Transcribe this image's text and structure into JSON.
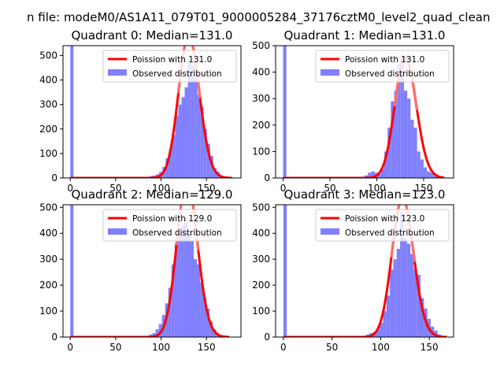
{
  "figure": {
    "suptitle": "n file: modeM0/AS1A11_079T01_9000005284_37176cztM0_level2_quad_clean"
  },
  "chart_data": [
    {
      "type": "bar",
      "title": "Quadrant 0: Median=131.0",
      "median": 131.0,
      "xlim": [
        -8,
        188
      ],
      "ylim": [
        0,
        540
      ],
      "xticks": [
        0,
        50,
        100,
        150
      ],
      "yticks": [
        0,
        100,
        200,
        300,
        400,
        500
      ],
      "legend": [
        "Poission with 131.0",
        "Observed distribution"
      ],
      "legend_position": "upper right",
      "zero_bin_value": 540,
      "bin_width": 3.5,
      "bin_left": [
        84,
        87.5,
        91,
        94.5,
        98,
        101.5,
        105,
        108.5,
        112,
        115.5,
        119,
        122.5,
        126,
        129.5,
        133,
        136.5,
        140,
        143.5,
        147,
        150.5,
        154,
        157.5,
        161,
        164.5,
        168
      ],
      "hist_values": [
        3,
        8,
        10,
        15,
        25,
        45,
        80,
        115,
        175,
        255,
        300,
        330,
        370,
        480,
        460,
        410,
        340,
        290,
        200,
        140,
        90,
        40,
        25,
        10,
        5
      ],
      "curve_mu": 131.0,
      "curve_range": [
        0,
        178
      ],
      "colors": {
        "hist": "#8080ff",
        "zero_bar": "#8080ff",
        "curve": "#ff0000",
        "curve_peak": "#ff7f7f"
      }
    },
    {
      "type": "bar",
      "title": "Quadrant 1: Median=131.0",
      "median": 131.0,
      "xlim": [
        -8,
        182
      ],
      "ylim": [
        0,
        500
      ],
      "xticks": [
        0,
        50,
        100,
        150
      ],
      "yticks": [
        0,
        100,
        200,
        300,
        400,
        500
      ],
      "legend": [
        "Poission with 131.0",
        "Observed distribution"
      ],
      "legend_position": "upper right",
      "zero_bin_value": 500,
      "bin_width": 3.5,
      "bin_left": [
        80,
        83.5,
        87,
        90.5,
        94,
        97.5,
        101,
        104.5,
        108,
        111.5,
        115,
        118.5,
        122,
        125.5,
        129,
        132.5,
        136,
        139.5,
        143,
        146.5,
        150,
        153.5,
        157,
        160.5,
        164
      ],
      "hist_values": [
        2,
        5,
        10,
        20,
        25,
        20,
        15,
        35,
        100,
        190,
        290,
        330,
        430,
        460,
        330,
        300,
        220,
        190,
        100,
        70,
        40,
        25,
        20,
        10,
        5
      ],
      "curve_mu": 131.0,
      "curve_range": [
        0,
        172
      ],
      "colors": {
        "hist": "#8080ff",
        "zero_bar": "#8080ff",
        "curve": "#ff0000",
        "curve_peak": "#ff7f7f"
      }
    },
    {
      "type": "bar",
      "title": "Quadrant 2: Median=129.0",
      "median": 129.0,
      "xlim": [
        -8,
        188
      ],
      "ylim": [
        0,
        510
      ],
      "xticks": [
        0,
        50,
        100,
        150
      ],
      "yticks": [
        0,
        100,
        200,
        300,
        400,
        500
      ],
      "legend": [
        "Poission with 129.0",
        "Observed distribution"
      ],
      "legend_position": "upper right",
      "zero_bin_value": 510,
      "bin_width": 3.5,
      "bin_left": [
        80,
        83.5,
        87,
        90.5,
        94,
        97.5,
        101,
        104.5,
        108,
        111.5,
        115,
        118.5,
        122,
        125.5,
        129,
        132.5,
        136,
        139.5,
        143,
        146.5,
        150,
        153.5,
        157,
        160.5,
        164,
        167.5
      ],
      "hist_values": [
        5,
        5,
        10,
        15,
        30,
        50,
        85,
        130,
        190,
        280,
        360,
        400,
        430,
        460,
        400,
        370,
        300,
        280,
        210,
        150,
        110,
        60,
        30,
        15,
        5,
        3
      ],
      "curve_mu": 129.0,
      "curve_range": [
        0,
        175
      ],
      "colors": {
        "hist": "#8080ff",
        "zero_bar": "#8080ff",
        "curve": "#ff0000",
        "curve_peak": "#ff7f7f"
      }
    },
    {
      "type": "bar",
      "title": "Quadrant 3: Median=123.0",
      "median": 123.0,
      "xlim": [
        -8,
        175
      ],
      "ylim": [
        0,
        510
      ],
      "xticks": [
        0,
        50,
        100,
        150
      ],
      "yticks": [
        0,
        100,
        200,
        300,
        400,
        500
      ],
      "legend": [
        "Poission with 123.0",
        "Observed distribution"
      ],
      "legend_position": "upper right",
      "zero_bin_value": 510,
      "bin_width": 3.5,
      "bin_left": [
        78,
        81.5,
        85,
        88.5,
        92,
        95.5,
        99,
        102.5,
        106,
        109.5,
        113,
        116.5,
        120,
        123.5,
        127,
        130.5,
        134,
        137.5,
        141,
        144.5,
        148,
        151.5,
        155,
        158.5,
        162
      ],
      "hist_values": [
        3,
        5,
        10,
        15,
        20,
        30,
        55,
        100,
        160,
        260,
        300,
        340,
        480,
        380,
        360,
        320,
        260,
        240,
        150,
        110,
        70,
        40,
        25,
        10,
        4
      ],
      "curve_mu": 123.0,
      "curve_range": [
        0,
        168
      ],
      "colors": {
        "hist": "#8080ff",
        "zero_bar": "#8080ff",
        "curve": "#ff0000",
        "curve_peak": "#ff7f7f"
      }
    }
  ]
}
